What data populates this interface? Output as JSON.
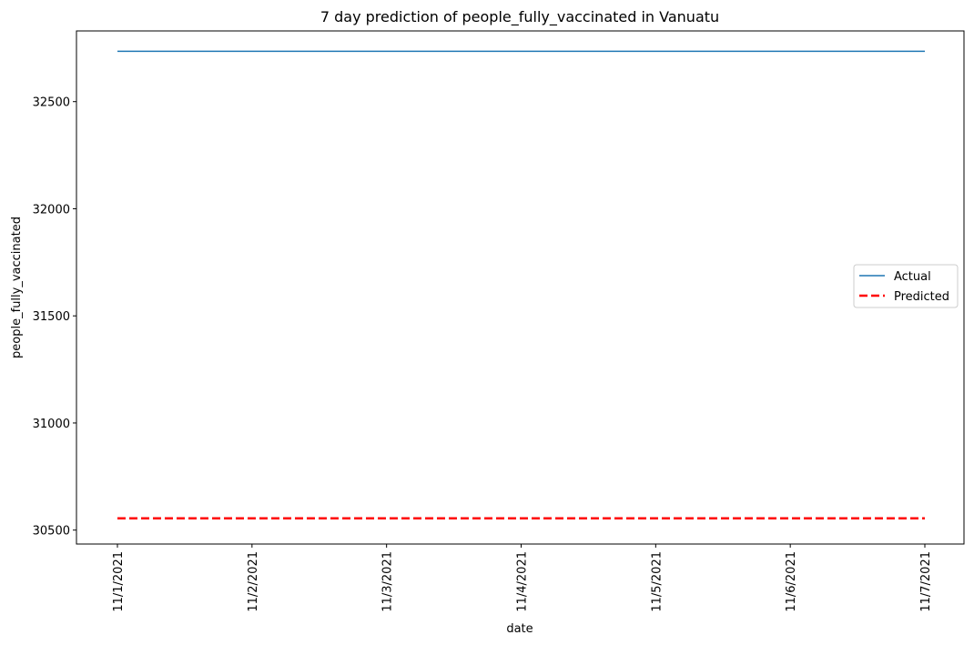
{
  "chart_data": {
    "type": "line",
    "title": "7 day prediction of people_fully_vaccinated in Vanuatu",
    "xlabel": "date",
    "ylabel": "people_fully_vaccinated",
    "categories": [
      "11/1/2021",
      "11/2/2021",
      "11/3/2021",
      "11/4/2021",
      "11/5/2021",
      "11/6/2021",
      "11/7/2021"
    ],
    "yticks": [
      30500,
      31000,
      31500,
      32000,
      32500
    ],
    "ylim": [
      30435,
      32830
    ],
    "series": [
      {
        "name": "Actual",
        "color": "#1f77b4",
        "style": "solid",
        "values": [
          32735,
          32735,
          32735,
          32735,
          32735,
          32735,
          32735
        ]
      },
      {
        "name": "Predicted",
        "color": "#ff0000",
        "style": "dashed",
        "values": [
          30555,
          30555,
          30555,
          30555,
          30555,
          30555,
          30555
        ]
      }
    ],
    "legend_position": "center-right",
    "grid": false
  }
}
